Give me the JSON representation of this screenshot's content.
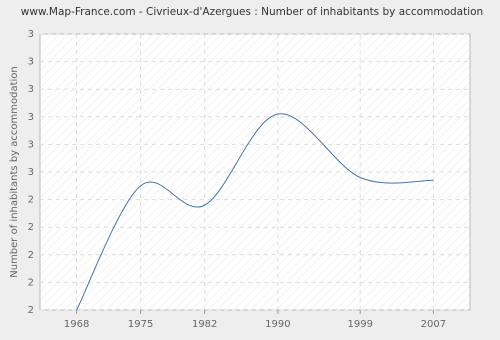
{
  "chart_data": {
    "type": "line",
    "title": "www.Map-France.com - Civrieux-d'Azergues : Number of inhabitants by accommodation",
    "y_label": "Number of inhabitants by accommodation",
    "x": [
      1968,
      1975,
      1982,
      1990,
      1999,
      2007
    ],
    "series": [
      {
        "name": "Number of inhabitants by accommodation",
        "color": "#4a74a4",
        "values": [
          2.0,
          2.45,
          2.38,
          2.71,
          2.48,
          2.47
        ]
      }
    ],
    "xlim": [
      1964,
      2011
    ],
    "xticks": [
      1968,
      1975,
      1982,
      1990,
      1999,
      2007
    ],
    "ylim": [
      2.0,
      3.0
    ],
    "yticks": [
      {
        "value": 2.0,
        "label": "2"
      },
      {
        "value": 2.1,
        "label": "2"
      },
      {
        "value": 2.2,
        "label": "2"
      },
      {
        "value": 2.3,
        "label": "2"
      },
      {
        "value": 2.4,
        "label": "2"
      },
      {
        "value": 2.5,
        "label": "3"
      },
      {
        "value": 2.6,
        "label": "3"
      },
      {
        "value": 2.7,
        "label": "3"
      },
      {
        "value": 2.8,
        "label": "3"
      },
      {
        "value": 2.9,
        "label": "3"
      },
      {
        "value": 3.0,
        "label": "3"
      }
    ],
    "grid": true
  }
}
